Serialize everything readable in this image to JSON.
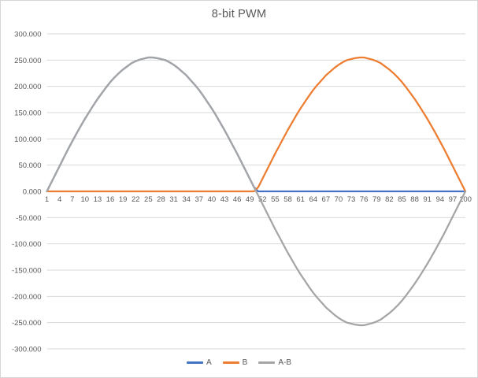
{
  "title": "8-bit PWM",
  "colors": {
    "series_a": "#4472C4",
    "series_b": "#ED7D31",
    "series_ab": "#A5A5A5",
    "gridline": "#D9D9D9",
    "axis_text": "#595959",
    "title_text": "#595959",
    "frame_border": "#D7D7D7",
    "background": "#FFFFFF"
  },
  "y_axis": {
    "min": -300,
    "max": 300,
    "step": 50,
    "tick_labels": [
      "300.000",
      "250.000",
      "200.000",
      "150.000",
      "100.000",
      "50.000",
      "0.000",
      "-50.000",
      "-100.000",
      "-150.000",
      "-200.000",
      "-250.000",
      "-300.000"
    ]
  },
  "x_axis": {
    "tick_labels": [
      "1",
      "4",
      "7",
      "10",
      "13",
      "16",
      "19",
      "22",
      "25",
      "28",
      "31",
      "34",
      "37",
      "40",
      "43",
      "46",
      "49",
      "52",
      "55",
      "58",
      "61",
      "64",
      "67",
      "70",
      "73",
      "76",
      "79",
      "82",
      "85",
      "88",
      "91",
      "94",
      "97",
      "100"
    ]
  },
  "chart_data": {
    "type": "line",
    "title": "8-bit PWM",
    "xlabel": "",
    "ylabel": "",
    "ylim": [
      -300,
      300
    ],
    "y_tick_step": 50,
    "x_tick_step": 3,
    "grid": true,
    "legend_position": "bottom",
    "x": [
      1,
      2,
      3,
      4,
      5,
      6,
      7,
      8,
      9,
      10,
      11,
      12,
      13,
      14,
      15,
      16,
      17,
      18,
      19,
      20,
      21,
      22,
      23,
      24,
      25,
      26,
      27,
      28,
      29,
      30,
      31,
      32,
      33,
      34,
      35,
      36,
      37,
      38,
      39,
      40,
      41,
      42,
      43,
      44,
      45,
      46,
      47,
      48,
      49,
      50,
      51,
      52,
      53,
      54,
      55,
      56,
      57,
      58,
      59,
      60,
      61,
      62,
      63,
      64,
      65,
      66,
      67,
      68,
      69,
      70,
      71,
      72,
      73,
      74,
      75,
      76,
      77,
      78,
      79,
      80,
      81,
      82,
      83,
      84,
      85,
      86,
      87,
      88,
      89,
      90,
      91,
      92,
      93,
      94,
      95,
      96,
      97,
      98,
      99,
      100
    ],
    "series": [
      {
        "name": "A",
        "color": "#4472C4",
        "values": [
          0,
          16,
          32,
          48,
          64,
          80,
          95,
          110,
          124,
          138,
          151,
          164,
          176,
          187,
          198,
          208,
          217,
          225,
          232,
          238,
          244,
          248,
          251,
          253,
          255,
          255,
          254,
          252,
          250,
          246,
          241,
          235,
          228,
          221,
          212,
          203,
          193,
          182,
          170,
          158,
          145,
          131,
          117,
          102,
          87,
          72,
          56,
          40,
          24,
          8,
          0,
          0,
          0,
          0,
          0,
          0,
          0,
          0,
          0,
          0,
          0,
          0,
          0,
          0,
          0,
          0,
          0,
          0,
          0,
          0,
          0,
          0,
          0,
          0,
          0,
          0,
          0,
          0,
          0,
          0,
          0,
          0,
          0,
          0,
          0,
          0,
          0,
          0,
          0,
          0,
          0,
          0,
          0,
          0,
          0,
          0,
          0,
          0,
          0,
          0
        ]
      },
      {
        "name": "B",
        "color": "#ED7D31",
        "values": [
          0,
          0,
          0,
          0,
          0,
          0,
          0,
          0,
          0,
          0,
          0,
          0,
          0,
          0,
          0,
          0,
          0,
          0,
          0,
          0,
          0,
          0,
          0,
          0,
          0,
          0,
          0,
          0,
          0,
          0,
          0,
          0,
          0,
          0,
          0,
          0,
          0,
          0,
          0,
          0,
          0,
          0,
          0,
          0,
          0,
          0,
          0,
          0,
          0,
          0,
          8,
          24,
          40,
          56,
          72,
          87,
          102,
          117,
          131,
          145,
          158,
          170,
          182,
          193,
          203,
          212,
          221,
          228,
          235,
          241,
          246,
          250,
          252,
          254,
          255,
          255,
          253,
          251,
          248,
          244,
          238,
          232,
          225,
          217,
          208,
          198,
          187,
          176,
          164,
          151,
          138,
          124,
          110,
          95,
          80,
          64,
          48,
          32,
          16,
          0
        ]
      },
      {
        "name": "A-B",
        "color": "#A5A5A5",
        "values": [
          0,
          16,
          32,
          48,
          64,
          80,
          95,
          110,
          124,
          138,
          151,
          164,
          176,
          187,
          198,
          208,
          217,
          225,
          232,
          238,
          244,
          248,
          251,
          253,
          255,
          255,
          254,
          252,
          250,
          246,
          241,
          235,
          228,
          221,
          212,
          203,
          193,
          182,
          170,
          158,
          145,
          131,
          117,
          102,
          87,
          72,
          56,
          40,
          24,
          8,
          -8,
          -24,
          -40,
          -56,
          -72,
          -87,
          -102,
          -117,
          -131,
          -145,
          -158,
          -170,
          -182,
          -193,
          -203,
          -212,
          -221,
          -228,
          -235,
          -241,
          -246,
          -250,
          -252,
          -254,
          -255,
          -255,
          -253,
          -251,
          -248,
          -244,
          -238,
          -232,
          -225,
          -217,
          -208,
          -198,
          -187,
          -176,
          -164,
          -151,
          -138,
          -124,
          -110,
          -95,
          -80,
          -64,
          -48,
          -32,
          -16,
          0
        ]
      }
    ]
  },
  "legend": {
    "items": [
      {
        "label": "A",
        "color": "#4472C4"
      },
      {
        "label": "B",
        "color": "#ED7D31"
      },
      {
        "label": "A-B",
        "color": "#A5A5A5"
      }
    ]
  }
}
